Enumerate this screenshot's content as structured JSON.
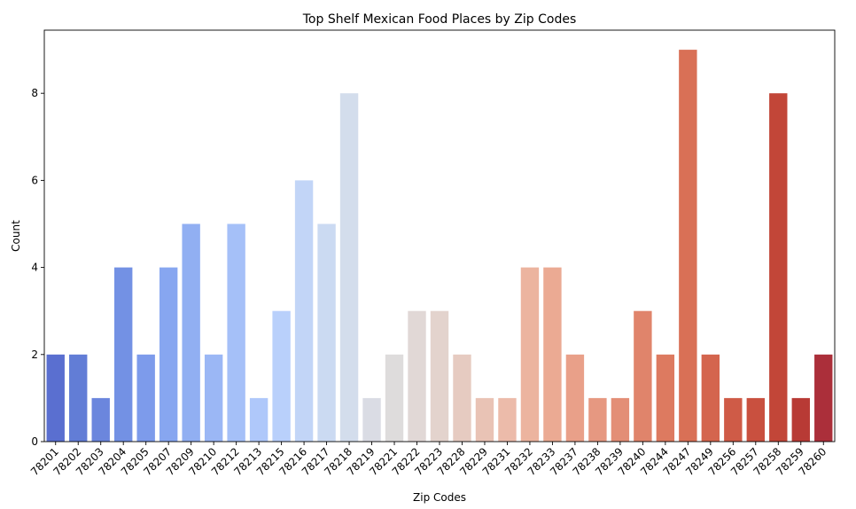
{
  "chart_data": {
    "type": "bar",
    "title": "Top Shelf Mexican Food Places by Zip Codes",
    "xlabel": "Zip Codes",
    "ylabel": "Count",
    "ylim": [
      0,
      9.45
    ],
    "yticks": [
      0,
      2,
      4,
      6,
      8
    ],
    "grid": false,
    "legend": "none",
    "palette": "coolwarm",
    "categories": [
      "78201",
      "78202",
      "78203",
      "78204",
      "78205",
      "78207",
      "78209",
      "78210",
      "78212",
      "78213",
      "78215",
      "78216",
      "78217",
      "78218",
      "78219",
      "78221",
      "78222",
      "78223",
      "78228",
      "78229",
      "78231",
      "78232",
      "78233",
      "78237",
      "78238",
      "78239",
      "78240",
      "78244",
      "78247",
      "78249",
      "78256",
      "78257",
      "78258",
      "78259",
      "78260"
    ],
    "values": [
      2,
      2,
      1,
      4,
      2,
      4,
      5,
      2,
      5,
      1,
      3,
      6,
      5,
      8,
      1,
      2,
      3,
      3,
      2,
      1,
      1,
      4,
      4,
      2,
      1,
      1,
      3,
      2,
      9,
      2,
      1,
      1,
      8,
      1,
      2
    ],
    "colors": [
      "#5a6fd0",
      "#627dd6",
      "#6b86dd",
      "#7391e4",
      "#7d9beb",
      "#87a6f0",
      "#91aff2",
      "#9bb7f5",
      "#a5c0f8",
      "#afc8fa",
      "#b9d0fb",
      "#c2d5f7",
      "#cbdaf2",
      "#d3ddec",
      "#dadce4",
      "#dedcdc",
      "#e1d8d6",
      "#e3d3cd",
      "#e6cbc1",
      "#e9c3b5",
      "#ecbbaa",
      "#ecb49f",
      "#ebaa93",
      "#e9a089",
      "#e69881",
      "#e38e76",
      "#e0846b",
      "#dd7a60",
      "#d97056",
      "#d4654e",
      "#cf5b47",
      "#c9503f",
      "#c24638",
      "#b83a35",
      "#ab2f3a"
    ]
  }
}
